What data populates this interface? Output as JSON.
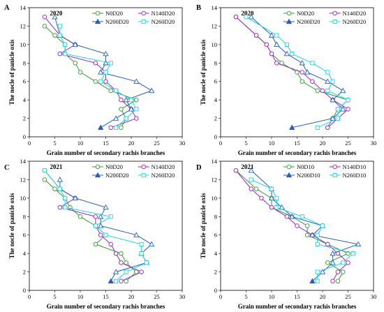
{
  "chart_data": [
    {
      "type": "line",
      "panel": "A",
      "title": "2020",
      "xlabel": "Grain number of secondary rachis branches",
      "ylabel": "The nocle of panicle oxis",
      "xlim": [
        0,
        30
      ],
      "ylim": [
        0,
        14
      ],
      "xticks": [
        "0",
        "5",
        "10",
        "15",
        "20",
        "25",
        "30"
      ],
      "yticks": [
        "0",
        "2",
        "4",
        "6",
        "8",
        "10",
        "12",
        "14"
      ],
      "legend_position": "top-right",
      "series": [
        {
          "name": "N0D20",
          "color": "#2e9e2e",
          "marker": "circle",
          "points": [
            [
              18,
              1
            ],
            [
              19,
              2
            ],
            [
              18,
              3
            ],
            [
              21,
              4
            ],
            [
              16,
              5
            ],
            [
              13,
              6
            ],
            [
              10,
              7
            ],
            [
              9,
              8
            ],
            [
              7,
              9
            ],
            [
              7,
              10
            ],
            [
              5,
              11
            ],
            [
              3,
              12
            ]
          ]
        },
        {
          "name": "N140D20",
          "color": "#9b1fc7",
          "marker": "circle",
          "points": [
            [
              16,
              1
            ],
            [
              21,
              2
            ],
            [
              20,
              3
            ],
            [
              18,
              4
            ],
            [
              17,
              5
            ],
            [
              15,
              6
            ],
            [
              15,
              7
            ],
            [
              13,
              8
            ],
            [
              6,
              9
            ],
            [
              9,
              10
            ],
            [
              6,
              11
            ],
            [
              3,
              13
            ]
          ]
        },
        {
          "name": "N200D20",
          "color": "#1f5fc7",
          "marker": "triangle",
          "points": [
            [
              14,
              1
            ],
            [
              17,
              2
            ],
            [
              20,
              3
            ],
            [
              19,
              4
            ],
            [
              24,
              5
            ],
            [
              21,
              6
            ],
            [
              14,
              7
            ],
            [
              15,
              8
            ],
            [
              15,
              9
            ],
            [
              9,
              10
            ],
            [
              6,
              11
            ],
            [
              5,
              13
            ]
          ]
        },
        {
          "name": "N260D20",
          "color": "#19d5e8",
          "marker": "square",
          "points": [
            [
              17,
              1
            ],
            [
              19,
              2
            ],
            [
              21,
              3
            ],
            [
              20,
              4
            ],
            [
              17,
              5
            ],
            [
              14,
              6
            ],
            [
              15,
              7
            ],
            [
              16,
              8
            ],
            [
              7,
              9
            ],
            [
              7,
              10
            ],
            [
              6,
              11
            ],
            [
              6,
              12
            ]
          ]
        }
      ]
    },
    {
      "type": "line",
      "panel": "B",
      "title": "2020",
      "xlabel": "Grain number of secondary rachis branches",
      "ylabel": "The nocle of panicle oxis",
      "xlim": [
        0,
        30
      ],
      "ylim": [
        0,
        14
      ],
      "xticks": [
        "0",
        "5",
        "10",
        "15",
        "20",
        "25",
        "30"
      ],
      "yticks": [
        "0",
        "2",
        "4",
        "6",
        "8",
        "10",
        "12",
        "14"
      ],
      "legend_position": "top-right",
      "series": [
        {
          "name": "N0D20",
          "color": "#2e9e2e",
          "marker": "circle",
          "points": [
            [
              21,
              1
            ],
            [
              22,
              2
            ],
            [
              23,
              3
            ],
            [
              25,
              4
            ],
            [
              19,
              5
            ],
            [
              16,
              6
            ],
            [
              15,
              7
            ],
            [
              12,
              8
            ],
            [
              10,
              9
            ],
            [
              9,
              10
            ],
            [
              7,
              11
            ],
            [
              3,
              13
            ]
          ]
        },
        {
          "name": "N140D20",
          "color": "#9b1fc7",
          "marker": "circle",
          "points": [
            [
              21,
              1
            ],
            [
              23,
              2
            ],
            [
              25,
              3
            ],
            [
              22,
              4
            ],
            [
              20,
              5
            ],
            [
              18,
              6
            ],
            [
              16,
              7
            ],
            [
              11,
              8
            ],
            [
              10,
              9
            ],
            [
              9,
              10
            ],
            [
              7,
              11
            ],
            [
              3,
              13
            ]
          ]
        },
        {
          "name": "N200D20",
          "color": "#1f5fc7",
          "marker": "triangle",
          "points": [
            [
              14,
              1
            ],
            [
              22,
              2
            ],
            [
              24,
              3
            ],
            [
              22,
              4
            ],
            [
              24,
              5
            ],
            [
              21,
              6
            ],
            [
              17,
              7
            ],
            [
              16,
              8
            ],
            [
              13,
              9
            ],
            [
              11,
              10
            ],
            [
              10,
              11
            ],
            [
              6,
              13
            ]
          ]
        },
        {
          "name": "N260D20",
          "color": "#19d5e8",
          "marker": "square",
          "points": [
            [
              19,
              1
            ],
            [
              23,
              2
            ],
            [
              23,
              3
            ],
            [
              25,
              4
            ],
            [
              21,
              5
            ],
            [
              22,
              6
            ],
            [
              21,
              7
            ],
            [
              18,
              8
            ],
            [
              14,
              9
            ],
            [
              13,
              10
            ],
            [
              11,
              11
            ],
            [
              5,
              13
            ]
          ]
        }
      ]
    },
    {
      "type": "line",
      "panel": "C",
      "title": "2021",
      "xlabel": "Grain number of secondary rachis branches",
      "ylabel": "The nocle of panicle oxis",
      "xlim": [
        0,
        30
      ],
      "ylim": [
        0,
        14
      ],
      "xticks": [
        "0",
        "5",
        "10",
        "15",
        "20",
        "25",
        "30"
      ],
      "yticks": [
        "0",
        "2",
        "4",
        "6",
        "8",
        "10",
        "12",
        "14"
      ],
      "legend_position": "top-right",
      "series": [
        {
          "name": "N0D20",
          "color": "#2e9e2e",
          "marker": "circle",
          "points": [
            [
              19,
              1
            ],
            [
              21,
              2
            ],
            [
              19,
              3
            ],
            [
              18,
              4
            ],
            [
              13,
              5
            ],
            [
              15,
              6
            ],
            [
              13,
              7
            ],
            [
              10,
              8
            ],
            [
              8,
              9
            ],
            [
              7,
              10
            ],
            [
              5,
              11
            ],
            [
              3,
              12
            ]
          ]
        },
        {
          "name": "N140D20",
          "color": "#9b1fc7",
          "marker": "circle",
          "points": [
            [
              18,
              1
            ],
            [
              22,
              2
            ],
            [
              18,
              3
            ],
            [
              17,
              4
            ],
            [
              16,
              5
            ],
            [
              14,
              6
            ],
            [
              13,
              7
            ],
            [
              13,
              8
            ],
            [
              6,
              9
            ],
            [
              9,
              10
            ],
            [
              6,
              11
            ],
            [
              3,
              13
            ]
          ]
        },
        {
          "name": "N200D20",
          "color": "#1f5fc7",
          "marker": "triangle",
          "points": [
            [
              16,
              1
            ],
            [
              17,
              2
            ],
            [
              23,
              3
            ],
            [
              22,
              4
            ],
            [
              24,
              5
            ],
            [
              21,
              6
            ],
            [
              14,
              7
            ],
            [
              14,
              8
            ],
            [
              15,
              9
            ],
            [
              9,
              10
            ],
            [
              6,
              11
            ],
            [
              6,
              12
            ]
          ]
        },
        {
          "name": "N260D20",
          "color": "#19d5e8",
          "marker": "square",
          "points": [
            [
              17,
              1
            ],
            [
              19,
              2
            ],
            [
              23,
              3
            ],
            [
              22,
              4
            ],
            [
              22,
              5
            ],
            [
              15,
              6
            ],
            [
              13,
              7
            ],
            [
              16,
              8
            ],
            [
              7,
              9
            ],
            [
              7,
              10
            ],
            [
              6,
              11
            ],
            [
              3,
              13
            ]
          ]
        }
      ]
    },
    {
      "type": "line",
      "panel": "D",
      "title": "2021",
      "xlabel": "Grain number of secondary rachis branches",
      "ylabel": "The nocle of panicle oxis",
      "xlim": [
        0,
        30
      ],
      "ylim": [
        0,
        14
      ],
      "xticks": [
        "0",
        "5",
        "10",
        "15",
        "20",
        "25",
        "30"
      ],
      "yticks": [
        "0",
        "2",
        "4",
        "6",
        "8",
        "10",
        "12",
        "14"
      ],
      "legend_position": "top-right",
      "series": [
        {
          "name": "N0D10",
          "color": "#2e9e2e",
          "marker": "circle",
          "points": [
            [
              23,
              1
            ],
            [
              24,
              2
            ],
            [
              21,
              3
            ],
            [
              25,
              4
            ],
            [
              21,
              5
            ],
            [
              17,
              6
            ],
            [
              17,
              7
            ],
            [
              14,
              8
            ],
            [
              10,
              9
            ],
            [
              10,
              10
            ],
            [
              7,
              11
            ],
            [
              3,
              13
            ]
          ]
        },
        {
          "name": "N140D10",
          "color": "#9b1fc7",
          "marker": "circle",
          "points": [
            [
              22,
              1
            ],
            [
              23,
              2
            ],
            [
              25,
              3
            ],
            [
              23,
              4
            ],
            [
              21,
              5
            ],
            [
              18,
              6
            ],
            [
              15,
              7
            ],
            [
              13,
              8
            ],
            [
              10,
              9
            ],
            [
              8,
              10
            ],
            [
              6,
              11
            ],
            [
              3,
              13
            ]
          ]
        },
        {
          "name": "N200D10",
          "color": "#1f5fc7",
          "marker": "triangle",
          "points": [
            [
              18,
              1
            ],
            [
              20,
              2
            ],
            [
              22,
              3
            ],
            [
              22,
              4
            ],
            [
              27,
              5
            ],
            [
              18,
              6
            ],
            [
              20,
              7
            ],
            [
              14,
              8
            ],
            [
              12,
              9
            ],
            [
              10,
              10
            ],
            [
              10,
              11
            ],
            [
              6,
              13
            ]
          ]
        },
        {
          "name": "N260D10",
          "color": "#19d5e8",
          "marker": "square",
          "points": [
            [
              19,
              1
            ],
            [
              19,
              2
            ],
            [
              24,
              3
            ],
            [
              26,
              4
            ],
            [
              19,
              5
            ],
            [
              19,
              6
            ],
            [
              20,
              7
            ],
            [
              16,
              8
            ],
            [
              11,
              9
            ],
            [
              11,
              10
            ],
            [
              10,
              11
            ],
            [
              6,
              12
            ]
          ]
        }
      ]
    }
  ]
}
